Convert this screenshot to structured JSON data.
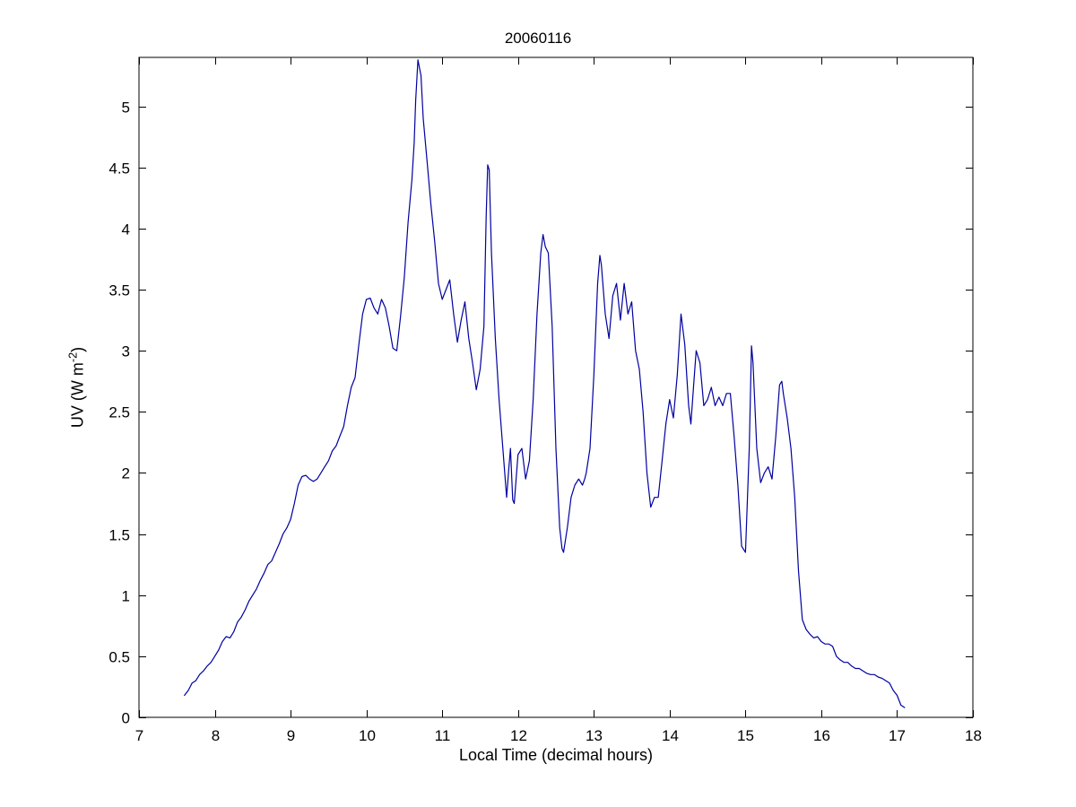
{
  "chart": {
    "title": "20060116",
    "xlabel": "Local Time (decimal hours)",
    "ylabel_prefix": "UV (W m",
    "ylabel_sup": "-2",
    "ylabel_suffix": ")"
  },
  "chart_data": {
    "type": "line",
    "title": "20060116",
    "xlabel": "Local Time (decimal hours)",
    "ylabel": "UV (W m^-2)",
    "xlim": [
      7,
      18
    ],
    "ylim": [
      0,
      5.4
    ],
    "xticks": [
      7,
      8,
      9,
      10,
      11,
      12,
      13,
      14,
      15,
      16,
      17,
      18
    ],
    "xtick_labels": [
      "7",
      "8",
      "9",
      "10",
      "11",
      "12",
      "13",
      "14",
      "15",
      "16",
      "17",
      "18"
    ],
    "yticks": [
      0,
      0.5,
      1,
      1.5,
      2,
      2.5,
      3,
      3.5,
      4,
      4.5,
      5
    ],
    "ytick_labels": [
      "0",
      "0.5",
      "1",
      "1.5",
      "2",
      "2.5",
      "3",
      "3.5",
      "4",
      "4.5",
      "5"
    ],
    "grid": false,
    "line_color": "#0000A0",
    "x": [
      7.6,
      7.65,
      7.7,
      7.75,
      7.8,
      7.85,
      7.9,
      7.95,
      8.0,
      8.05,
      8.1,
      8.15,
      8.2,
      8.25,
      8.3,
      8.35,
      8.4,
      8.45,
      8.5,
      8.55,
      8.6,
      8.65,
      8.7,
      8.75,
      8.8,
      8.85,
      8.9,
      8.95,
      9.0,
      9.05,
      9.1,
      9.15,
      9.2,
      9.25,
      9.3,
      9.35,
      9.4,
      9.45,
      9.5,
      9.55,
      9.6,
      9.65,
      9.7,
      9.75,
      9.8,
      9.85,
      9.9,
      9.95,
      10.0,
      10.05,
      10.1,
      10.15,
      10.2,
      10.25,
      10.3,
      10.35,
      10.4,
      10.45,
      10.5,
      10.55,
      10.6,
      10.63,
      10.65,
      10.68,
      10.72,
      10.75,
      10.8,
      10.85,
      10.9,
      10.95,
      11.0,
      11.05,
      11.1,
      11.15,
      11.2,
      11.25,
      11.3,
      11.35,
      11.4,
      11.45,
      11.5,
      11.55,
      11.58,
      11.6,
      11.62,
      11.65,
      11.7,
      11.75,
      11.8,
      11.85,
      11.88,
      11.9,
      11.93,
      11.95,
      12.0,
      12.05,
      12.1,
      12.15,
      12.2,
      12.25,
      12.3,
      12.33,
      12.36,
      12.4,
      12.45,
      12.5,
      12.55,
      12.58,
      12.6,
      12.65,
      12.7,
      12.75,
      12.8,
      12.85,
      12.88,
      12.9,
      12.95,
      13.0,
      13.05,
      13.08,
      13.1,
      13.15,
      13.2,
      13.25,
      13.3,
      13.35,
      13.4,
      13.42,
      13.45,
      13.5,
      13.55,
      13.6,
      13.65,
      13.7,
      13.75,
      13.8,
      13.85,
      13.9,
      13.95,
      14.0,
      14.05,
      14.1,
      14.15,
      14.2,
      14.25,
      14.28,
      14.32,
      14.35,
      14.4,
      14.45,
      14.5,
      14.55,
      14.6,
      14.65,
      14.7,
      14.75,
      14.8,
      14.85,
      14.9,
      14.95,
      15.0,
      15.05,
      15.08,
      15.1,
      15.15,
      15.2,
      15.25,
      15.3,
      15.35,
      15.4,
      15.45,
      15.48,
      15.5,
      15.55,
      15.6,
      15.65,
      15.7,
      15.75,
      15.8,
      15.85,
      15.9,
      15.95,
      16.0,
      16.05,
      16.1,
      16.15,
      16.2,
      16.25,
      16.3,
      16.35,
      16.4,
      16.45,
      16.5,
      16.55,
      16.6,
      16.65,
      16.7,
      16.75,
      16.8,
      16.85,
      16.9,
      16.95,
      17.0,
      17.05,
      17.1
    ],
    "y": [
      0.18,
      0.22,
      0.28,
      0.3,
      0.35,
      0.38,
      0.42,
      0.45,
      0.5,
      0.55,
      0.62,
      0.66,
      0.65,
      0.7,
      0.78,
      0.82,
      0.88,
      0.95,
      1.0,
      1.05,
      1.12,
      1.18,
      1.25,
      1.28,
      1.35,
      1.42,
      1.5,
      1.55,
      1.62,
      1.75,
      1.9,
      1.97,
      1.98,
      1.95,
      1.93,
      1.95,
      2.0,
      2.05,
      2.1,
      2.18,
      2.22,
      2.3,
      2.38,
      2.55,
      2.7,
      2.78,
      3.05,
      3.3,
      3.42,
      3.43,
      3.35,
      3.3,
      3.42,
      3.35,
      3.2,
      3.02,
      3.0,
      3.28,
      3.6,
      4.05,
      4.4,
      4.7,
      5.05,
      5.38,
      5.25,
      4.9,
      4.55,
      4.2,
      3.9,
      3.55,
      3.42,
      3.5,
      3.58,
      3.3,
      3.07,
      3.25,
      3.4,
      3.1,
      2.9,
      2.68,
      2.85,
      3.2,
      4.1,
      4.52,
      4.48,
      3.8,
      3.1,
      2.6,
      2.2,
      1.8,
      2.05,
      2.2,
      1.78,
      1.75,
      2.15,
      2.2,
      1.95,
      2.1,
      2.6,
      3.3,
      3.8,
      3.95,
      3.85,
      3.8,
      3.2,
      2.2,
      1.55,
      1.38,
      1.35,
      1.55,
      1.8,
      1.9,
      1.95,
      1.9,
      1.95,
      2.0,
      2.2,
      2.8,
      3.55,
      3.78,
      3.7,
      3.3,
      3.1,
      3.45,
      3.55,
      3.25,
      3.55,
      3.45,
      3.3,
      3.4,
      3.0,
      2.85,
      2.5,
      2.0,
      1.72,
      1.8,
      1.8,
      2.1,
      2.4,
      2.6,
      2.45,
      2.8,
      3.3,
      3.05,
      2.55,
      2.4,
      2.75,
      3.0,
      2.9,
      2.55,
      2.6,
      2.7,
      2.55,
      2.62,
      2.55,
      2.65,
      2.65,
      2.3,
      1.9,
      1.4,
      1.35,
      2.2,
      3.04,
      2.9,
      2.2,
      1.92,
      2.0,
      2.05,
      1.95,
      2.3,
      2.72,
      2.75,
      2.65,
      2.45,
      2.2,
      1.8,
      1.2,
      0.8,
      0.72,
      0.68,
      0.65,
      0.66,
      0.62,
      0.6,
      0.6,
      0.58,
      0.5,
      0.47,
      0.45,
      0.45,
      0.42,
      0.4,
      0.4,
      0.38,
      0.36,
      0.35,
      0.35,
      0.33,
      0.32,
      0.3,
      0.28,
      0.22,
      0.18,
      0.1,
      0.08
    ]
  }
}
